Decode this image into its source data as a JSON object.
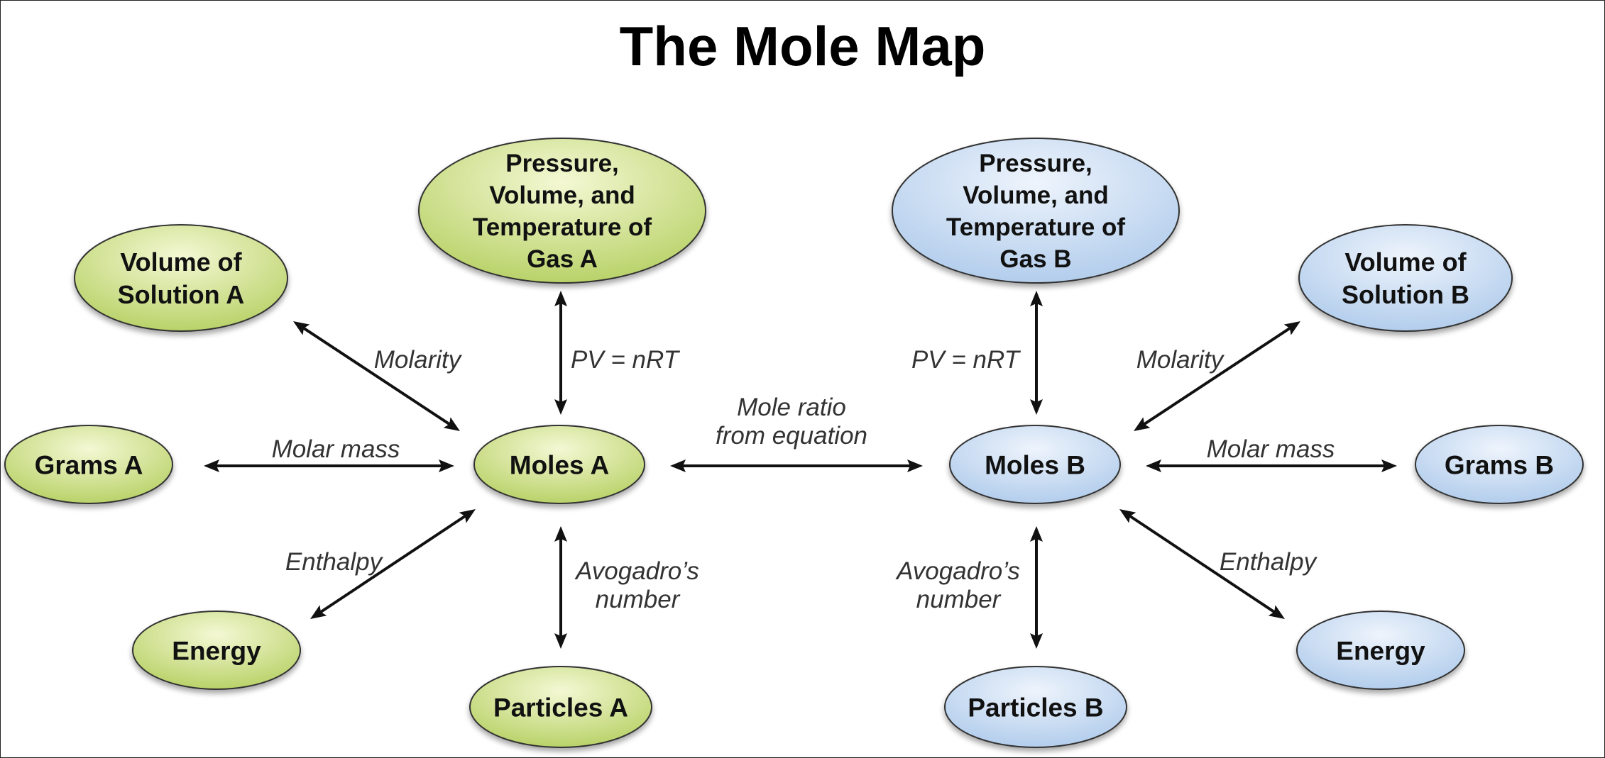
{
  "title": "The Mole Map",
  "colors": {
    "a_fill_light": "#f4f8d4",
    "a_fill_dark": "#b9d269",
    "b_fill_light": "#eef4fc",
    "b_fill_dark": "#b2cdec",
    "stroke": "#333333",
    "arrow": "#111111"
  },
  "nodes": [
    {
      "id": "pvt-a",
      "lines": [
        "Pressure,",
        "Volume, and",
        "Temperature of",
        "Gas A"
      ],
      "group": "a"
    },
    {
      "id": "vol-sol-a",
      "lines": [
        "Volume of",
        "Solution A"
      ],
      "group": "a"
    },
    {
      "id": "grams-a",
      "lines": [
        "Grams A"
      ],
      "group": "a"
    },
    {
      "id": "moles-a",
      "lines": [
        "Moles A"
      ],
      "group": "a"
    },
    {
      "id": "energy-a",
      "lines": [
        "Energy"
      ],
      "group": "a"
    },
    {
      "id": "particles-a",
      "lines": [
        "Particles A"
      ],
      "group": "a"
    },
    {
      "id": "pvt-b",
      "lines": [
        "Pressure,",
        "Volume, and",
        "Temperature of",
        "Gas B"
      ],
      "group": "b"
    },
    {
      "id": "vol-sol-b",
      "lines": [
        "Volume of",
        "Solution B"
      ],
      "group": "b"
    },
    {
      "id": "grams-b",
      "lines": [
        "Grams B"
      ],
      "group": "b"
    },
    {
      "id": "moles-b",
      "lines": [
        "Moles B"
      ],
      "group": "b"
    },
    {
      "id": "energy-b",
      "lines": [
        "Energy"
      ],
      "group": "b"
    },
    {
      "id": "particles-b",
      "lines": [
        "Particles B"
      ],
      "group": "b"
    }
  ],
  "edges": [
    {
      "id": "molarity-a",
      "from": "vol-sol-a",
      "to": "moles-a",
      "label": [
        "Molarity"
      ]
    },
    {
      "id": "pv-a",
      "from": "pvt-a",
      "to": "moles-a",
      "label": [
        "PV = nRT"
      ]
    },
    {
      "id": "molar-mass-a",
      "from": "grams-a",
      "to": "moles-a",
      "label": [
        "Molar mass"
      ]
    },
    {
      "id": "enthalpy-a",
      "from": "energy-a",
      "to": "moles-a",
      "label": [
        "Enthalpy"
      ]
    },
    {
      "id": "avogadro-a",
      "from": "particles-a",
      "to": "moles-a",
      "label": [
        "Avogadro’s",
        "number"
      ]
    },
    {
      "id": "mole-ratio",
      "from": "moles-a",
      "to": "moles-b",
      "label": [
        "Mole ratio",
        "from equation"
      ]
    },
    {
      "id": "pv-b",
      "from": "pvt-b",
      "to": "moles-b",
      "label": [
        "PV = nRT"
      ]
    },
    {
      "id": "molarity-b",
      "from": "vol-sol-b",
      "to": "moles-b",
      "label": [
        "Molarity"
      ]
    },
    {
      "id": "molar-mass-b",
      "from": "grams-b",
      "to": "moles-b",
      "label": [
        "Molar mass"
      ]
    },
    {
      "id": "enthalpy-b",
      "from": "energy-b",
      "to": "moles-b",
      "label": [
        "Enthalpy"
      ]
    },
    {
      "id": "avogadro-b",
      "from": "particles-b",
      "to": "moles-b",
      "label": [
        "Avogadro’s",
        "number"
      ]
    }
  ]
}
